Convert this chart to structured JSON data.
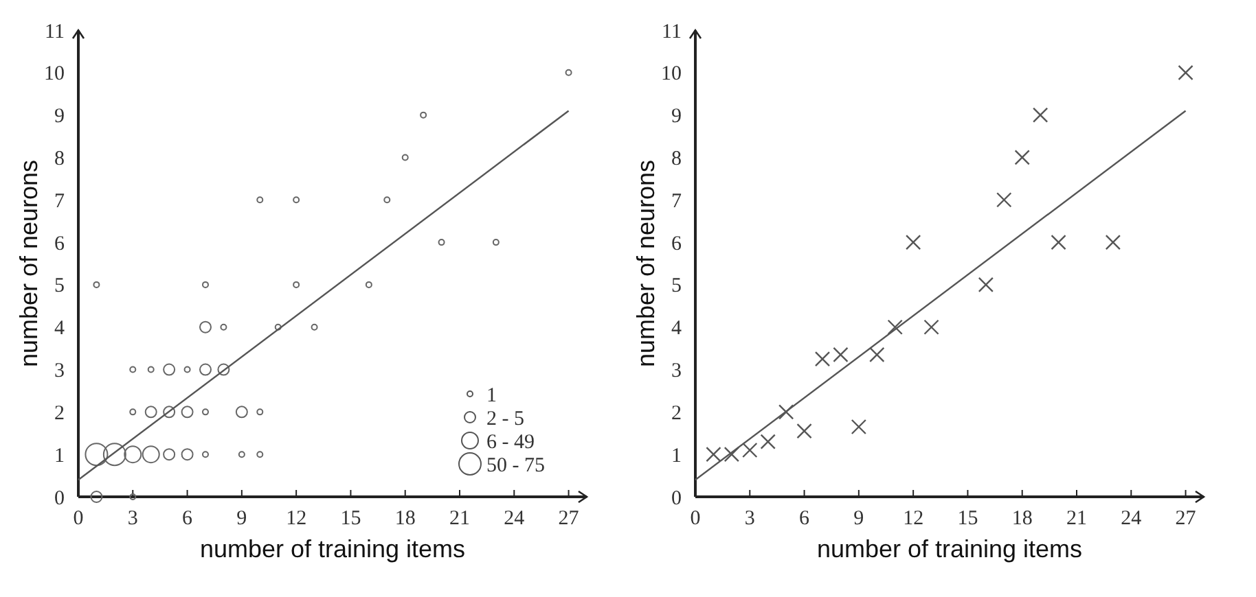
{
  "chart_data": [
    {
      "type": "bubble",
      "xlabel": "number of training items",
      "ylabel": "number of neurons",
      "xlim": [
        0,
        28
      ],
      "ylim": [
        0,
        11
      ],
      "xticks": [
        0,
        3,
        6,
        9,
        12,
        15,
        18,
        21,
        24,
        27
      ],
      "yticks": [
        0,
        1,
        2,
        3,
        4,
        5,
        6,
        7,
        8,
        9,
        10,
        11
      ],
      "grid": false,
      "size_legend": [
        {
          "value": 1,
          "label": "1"
        },
        {
          "value": 4,
          "label": "2 - 5"
        },
        {
          "value": 9,
          "label": "6 - 49"
        },
        {
          "value": 16,
          "label": "50 - 75"
        }
      ],
      "series": [
        {
          "color": "#666666",
          "x": [
            27,
            19,
            18,
            10,
            12,
            17,
            20,
            23,
            1,
            7,
            12,
            16,
            7,
            8,
            11,
            13,
            3,
            4,
            5,
            6,
            7,
            8,
            3,
            4,
            5,
            6,
            7,
            9,
            10,
            1,
            2,
            3,
            4,
            5,
            6,
            7,
            9,
            10,
            1,
            3
          ],
          "values": [
            10,
            9,
            8,
            7,
            7,
            7,
            6,
            6,
            5,
            5,
            5,
            5,
            4,
            4,
            4,
            4,
            3,
            3,
            3,
            3,
            3,
            3,
            2,
            2,
            2,
            2,
            2,
            2,
            2,
            1,
            1,
            1,
            1,
            1,
            1,
            1,
            1,
            1,
            0,
            0
          ],
          "sizes": [
            1,
            1,
            1,
            1,
            1,
            1,
            1,
            1,
            1,
            1,
            1,
            1,
            4,
            1,
            1,
            1,
            1,
            1,
            4,
            1,
            4,
            4,
            1,
            4,
            4,
            4,
            1,
            4,
            1,
            16,
            16,
            9,
            9,
            4,
            4,
            1,
            1,
            1,
            4,
            1
          ]
        },
        {
          "type": "line",
          "color": "#555555",
          "x": [
            0,
            27
          ],
          "values": [
            0.4,
            9.1
          ]
        }
      ]
    },
    {
      "type": "scatter",
      "xlabel": "number of training items",
      "ylabel": "number of neurons",
      "xlim": [
        0,
        28
      ],
      "ylim": [
        0,
        11
      ],
      "xticks": [
        0,
        3,
        6,
        9,
        12,
        15,
        18,
        21,
        24,
        27
      ],
      "yticks": [
        0,
        1,
        2,
        3,
        4,
        5,
        6,
        7,
        8,
        9,
        10,
        11
      ],
      "grid": false,
      "series": [
        {
          "color": "#555555",
          "marker": "cross",
          "x": [
            1,
            2,
            3,
            4,
            5,
            6,
            7,
            8,
            9,
            10,
            11,
            12,
            13,
            16,
            17,
            18,
            19,
            20,
            23,
            27
          ],
          "values": [
            1,
            1,
            1.1,
            1.3,
            2,
            1.55,
            3.25,
            3.35,
            1.65,
            3.35,
            4,
            6,
            4,
            5,
            7,
            8,
            9,
            6,
            6,
            10
          ]
        },
        {
          "type": "line",
          "color": "#555555",
          "x": [
            0,
            27
          ],
          "values": [
            0.4,
            9.1
          ]
        }
      ]
    }
  ]
}
